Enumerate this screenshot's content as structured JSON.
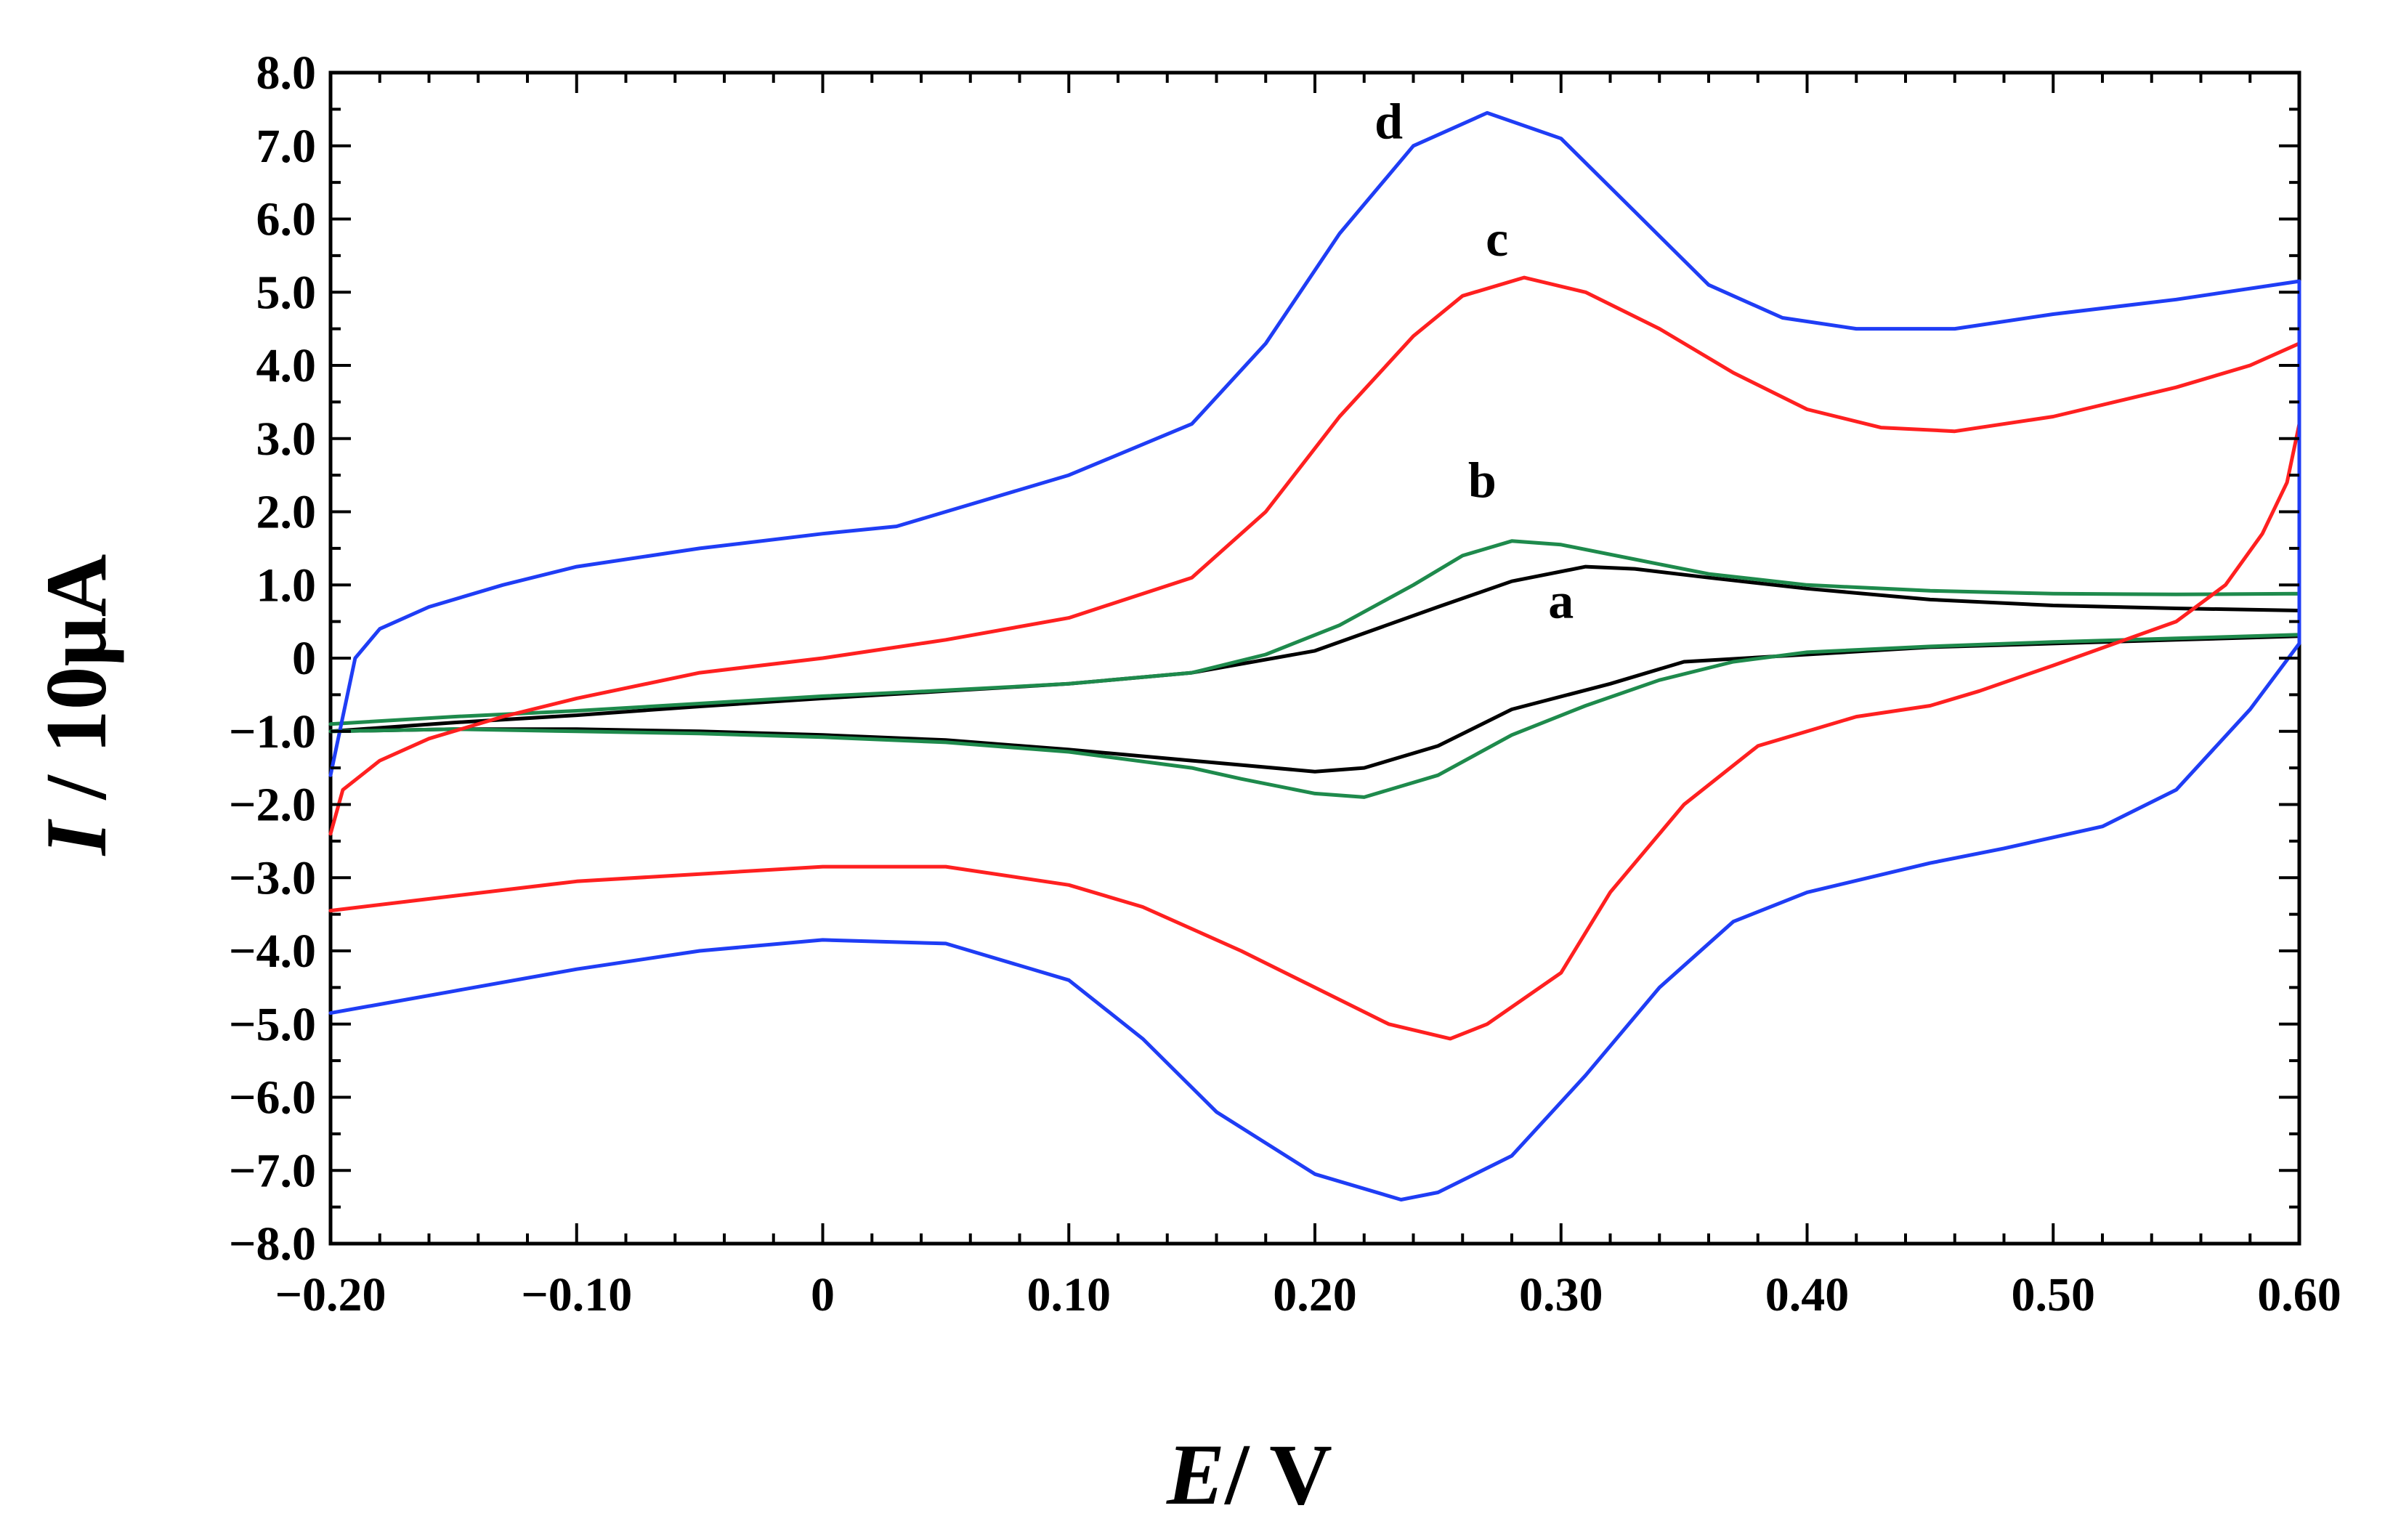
{
  "chart_data": {
    "type": "line",
    "title": "",
    "xlabel_italic": "E",
    "xlabel_rest": "/ V",
    "ylabel_italic": "I",
    "ylabel_rest": " / 10μA",
    "xlim": [
      -0.2,
      0.6
    ],
    "ylim": [
      -8.0,
      8.0
    ],
    "grid": false,
    "x_ticks": [
      {
        "value": -0.2,
        "label": "−0.20"
      },
      {
        "value": -0.1,
        "label": "−0.10"
      },
      {
        "value": 0.0,
        "label": "0"
      },
      {
        "value": 0.1,
        "label": "0.10"
      },
      {
        "value": 0.2,
        "label": "0.20"
      },
      {
        "value": 0.3,
        "label": "0.30"
      },
      {
        "value": 0.4,
        "label": "0.40"
      },
      {
        "value": 0.5,
        "label": "0.50"
      },
      {
        "value": 0.6,
        "label": "0.60"
      }
    ],
    "y_ticks": [
      {
        "value": 8.0,
        "label": "8.0"
      },
      {
        "value": 7.0,
        "label": "7.0"
      },
      {
        "value": 6.0,
        "label": "6.0"
      },
      {
        "value": 5.0,
        "label": "5.0"
      },
      {
        "value": 4.0,
        "label": "4.0"
      },
      {
        "value": 3.0,
        "label": "3.0"
      },
      {
        "value": 2.0,
        "label": "2.0"
      },
      {
        "value": 1.0,
        "label": "1.0"
      },
      {
        "value": 0.0,
        "label": "0"
      },
      {
        "value": -1.0,
        "label": "−1.0"
      },
      {
        "value": -2.0,
        "label": "−2.0"
      },
      {
        "value": -3.0,
        "label": "−3.0"
      },
      {
        "value": -4.0,
        "label": "−4.0"
      },
      {
        "value": -5.0,
        "label": "−5.0"
      },
      {
        "value": -6.0,
        "label": "−6.0"
      },
      {
        "value": -7.0,
        "label": "−7.0"
      },
      {
        "value": -8.0,
        "label": "−8.0"
      }
    ],
    "series": [
      {
        "name": "a",
        "color": "#000000",
        "label_at": [
          0.3,
          0.55
        ],
        "points": [
          [
            -0.2,
            -1.0
          ],
          [
            -0.15,
            -0.88
          ],
          [
            -0.1,
            -0.78
          ],
          [
            -0.05,
            -0.66
          ],
          [
            0.0,
            -0.55
          ],
          [
            0.05,
            -0.45
          ],
          [
            0.1,
            -0.35
          ],
          [
            0.15,
            -0.2
          ],
          [
            0.2,
            0.1
          ],
          [
            0.25,
            0.7
          ],
          [
            0.28,
            1.05
          ],
          [
            0.31,
            1.25
          ],
          [
            0.33,
            1.22
          ],
          [
            0.36,
            1.1
          ],
          [
            0.4,
            0.95
          ],
          [
            0.45,
            0.8
          ],
          [
            0.5,
            0.72
          ],
          [
            0.55,
            0.68
          ],
          [
            0.6,
            0.65
          ],
          [
            0.6,
            0.3
          ],
          [
            0.55,
            0.25
          ],
          [
            0.5,
            0.2
          ],
          [
            0.45,
            0.15
          ],
          [
            0.4,
            0.05
          ],
          [
            0.35,
            -0.05
          ],
          [
            0.32,
            -0.35
          ],
          [
            0.28,
            -0.7
          ],
          [
            0.25,
            -1.2
          ],
          [
            0.22,
            -1.5
          ],
          [
            0.2,
            -1.55
          ],
          [
            0.15,
            -1.4
          ],
          [
            0.1,
            -1.25
          ],
          [
            0.05,
            -1.12
          ],
          [
            0.0,
            -1.05
          ],
          [
            -0.05,
            -1.0
          ],
          [
            -0.1,
            -0.97
          ],
          [
            -0.15,
            -0.97
          ],
          [
            -0.2,
            -1.0
          ]
        ]
      },
      {
        "name": "b",
        "color": "#1e8a4c",
        "label_at": [
          0.268,
          2.2
        ],
        "points": [
          [
            -0.2,
            -0.9
          ],
          [
            -0.15,
            -0.8
          ],
          [
            -0.1,
            -0.72
          ],
          [
            -0.05,
            -0.62
          ],
          [
            0.0,
            -0.52
          ],
          [
            0.05,
            -0.44
          ],
          [
            0.1,
            -0.35
          ],
          [
            0.15,
            -0.2
          ],
          [
            0.18,
            0.05
          ],
          [
            0.21,
            0.45
          ],
          [
            0.24,
            1.0
          ],
          [
            0.26,
            1.4
          ],
          [
            0.28,
            1.6
          ],
          [
            0.3,
            1.55
          ],
          [
            0.33,
            1.35
          ],
          [
            0.36,
            1.15
          ],
          [
            0.4,
            1.0
          ],
          [
            0.45,
            0.92
          ],
          [
            0.5,
            0.88
          ],
          [
            0.55,
            0.87
          ],
          [
            0.6,
            0.88
          ],
          [
            0.6,
            0.32
          ],
          [
            0.55,
            0.27
          ],
          [
            0.5,
            0.22
          ],
          [
            0.45,
            0.16
          ],
          [
            0.4,
            0.08
          ],
          [
            0.37,
            -0.05
          ],
          [
            0.34,
            -0.3
          ],
          [
            0.31,
            -0.65
          ],
          [
            0.28,
            -1.05
          ],
          [
            0.25,
            -1.6
          ],
          [
            0.22,
            -1.9
          ],
          [
            0.2,
            -1.85
          ],
          [
            0.17,
            -1.65
          ],
          [
            0.15,
            -1.5
          ],
          [
            0.1,
            -1.28
          ],
          [
            0.05,
            -1.15
          ],
          [
            0.0,
            -1.08
          ],
          [
            -0.05,
            -1.03
          ],
          [
            -0.1,
            -1.0
          ],
          [
            -0.15,
            -0.97
          ],
          [
            -0.2,
            -1.0
          ]
        ]
      },
      {
        "name": "c",
        "color": "#ff2020",
        "label_at": [
          0.274,
          5.5
        ],
        "points": [
          [
            -0.2,
            -2.4
          ],
          [
            -0.195,
            -1.8
          ],
          [
            -0.18,
            -1.4
          ],
          [
            -0.16,
            -1.1
          ],
          [
            -0.13,
            -0.8
          ],
          [
            -0.1,
            -0.55
          ],
          [
            -0.05,
            -0.2
          ],
          [
            0.0,
            0.0
          ],
          [
            0.05,
            0.25
          ],
          [
            0.1,
            0.55
          ],
          [
            0.15,
            1.1
          ],
          [
            0.18,
            2.0
          ],
          [
            0.21,
            3.3
          ],
          [
            0.24,
            4.4
          ],
          [
            0.26,
            4.95
          ],
          [
            0.285,
            5.2
          ],
          [
            0.31,
            5.0
          ],
          [
            0.34,
            4.5
          ],
          [
            0.37,
            3.9
          ],
          [
            0.4,
            3.4
          ],
          [
            0.43,
            3.15
          ],
          [
            0.46,
            3.1
          ],
          [
            0.5,
            3.3
          ],
          [
            0.55,
            3.7
          ],
          [
            0.58,
            4.0
          ],
          [
            0.6,
            4.3
          ],
          [
            0.6,
            3.2
          ],
          [
            0.595,
            2.4
          ],
          [
            0.585,
            1.7
          ],
          [
            0.57,
            1.0
          ],
          [
            0.55,
            0.5
          ],
          [
            0.5,
            -0.1
          ],
          [
            0.47,
            -0.45
          ],
          [
            0.45,
            -0.65
          ],
          [
            0.42,
            -0.8
          ],
          [
            0.38,
            -1.2
          ],
          [
            0.35,
            -2.0
          ],
          [
            0.32,
            -3.2
          ],
          [
            0.3,
            -4.3
          ],
          [
            0.27,
            -5.0
          ],
          [
            0.255,
            -5.2
          ],
          [
            0.23,
            -5.0
          ],
          [
            0.2,
            -4.5
          ],
          [
            0.17,
            -4.0
          ],
          [
            0.13,
            -3.4
          ],
          [
            0.1,
            -3.1
          ],
          [
            0.05,
            -2.85
          ],
          [
            0.0,
            -2.85
          ],
          [
            -0.05,
            -2.95
          ],
          [
            -0.1,
            -3.05
          ],
          [
            -0.15,
            -3.25
          ],
          [
            -0.2,
            -3.45
          ]
        ]
      },
      {
        "name": "d",
        "color": "#1f3df5",
        "label_at": [
          0.23,
          7.1
        ],
        "points": [
          [
            -0.2,
            -1.6
          ],
          [
            -0.195,
            -0.8
          ],
          [
            -0.19,
            0.0
          ],
          [
            -0.18,
            0.4
          ],
          [
            -0.16,
            0.7
          ],
          [
            -0.13,
            1.0
          ],
          [
            -0.1,
            1.25
          ],
          [
            -0.05,
            1.5
          ],
          [
            0.0,
            1.7
          ],
          [
            0.03,
            1.8
          ],
          [
            0.06,
            2.1
          ],
          [
            0.1,
            2.5
          ],
          [
            0.15,
            3.2
          ],
          [
            0.18,
            4.3
          ],
          [
            0.21,
            5.8
          ],
          [
            0.24,
            7.0
          ],
          [
            0.27,
            7.45
          ],
          [
            0.3,
            7.1
          ],
          [
            0.33,
            6.1
          ],
          [
            0.36,
            5.1
          ],
          [
            0.39,
            4.65
          ],
          [
            0.42,
            4.5
          ],
          [
            0.46,
            4.5
          ],
          [
            0.5,
            4.7
          ],
          [
            0.55,
            4.9
          ],
          [
            0.6,
            5.15
          ],
          [
            0.6,
            0.2
          ],
          [
            0.58,
            -0.7
          ],
          [
            0.55,
            -1.8
          ],
          [
            0.52,
            -2.3
          ],
          [
            0.48,
            -2.6
          ],
          [
            0.45,
            -2.8
          ],
          [
            0.4,
            -3.2
          ],
          [
            0.37,
            -3.6
          ],
          [
            0.34,
            -4.5
          ],
          [
            0.31,
            -5.7
          ],
          [
            0.28,
            -6.8
          ],
          [
            0.25,
            -7.3
          ],
          [
            0.235,
            -7.4
          ],
          [
            0.2,
            -7.05
          ],
          [
            0.16,
            -6.2
          ],
          [
            0.13,
            -5.2
          ],
          [
            0.1,
            -4.4
          ],
          [
            0.05,
            -3.9
          ],
          [
            0.0,
            -3.85
          ],
          [
            -0.05,
            -4.0
          ],
          [
            -0.1,
            -4.25
          ],
          [
            -0.15,
            -4.55
          ],
          [
            -0.2,
            -4.85
          ]
        ]
      }
    ]
  }
}
